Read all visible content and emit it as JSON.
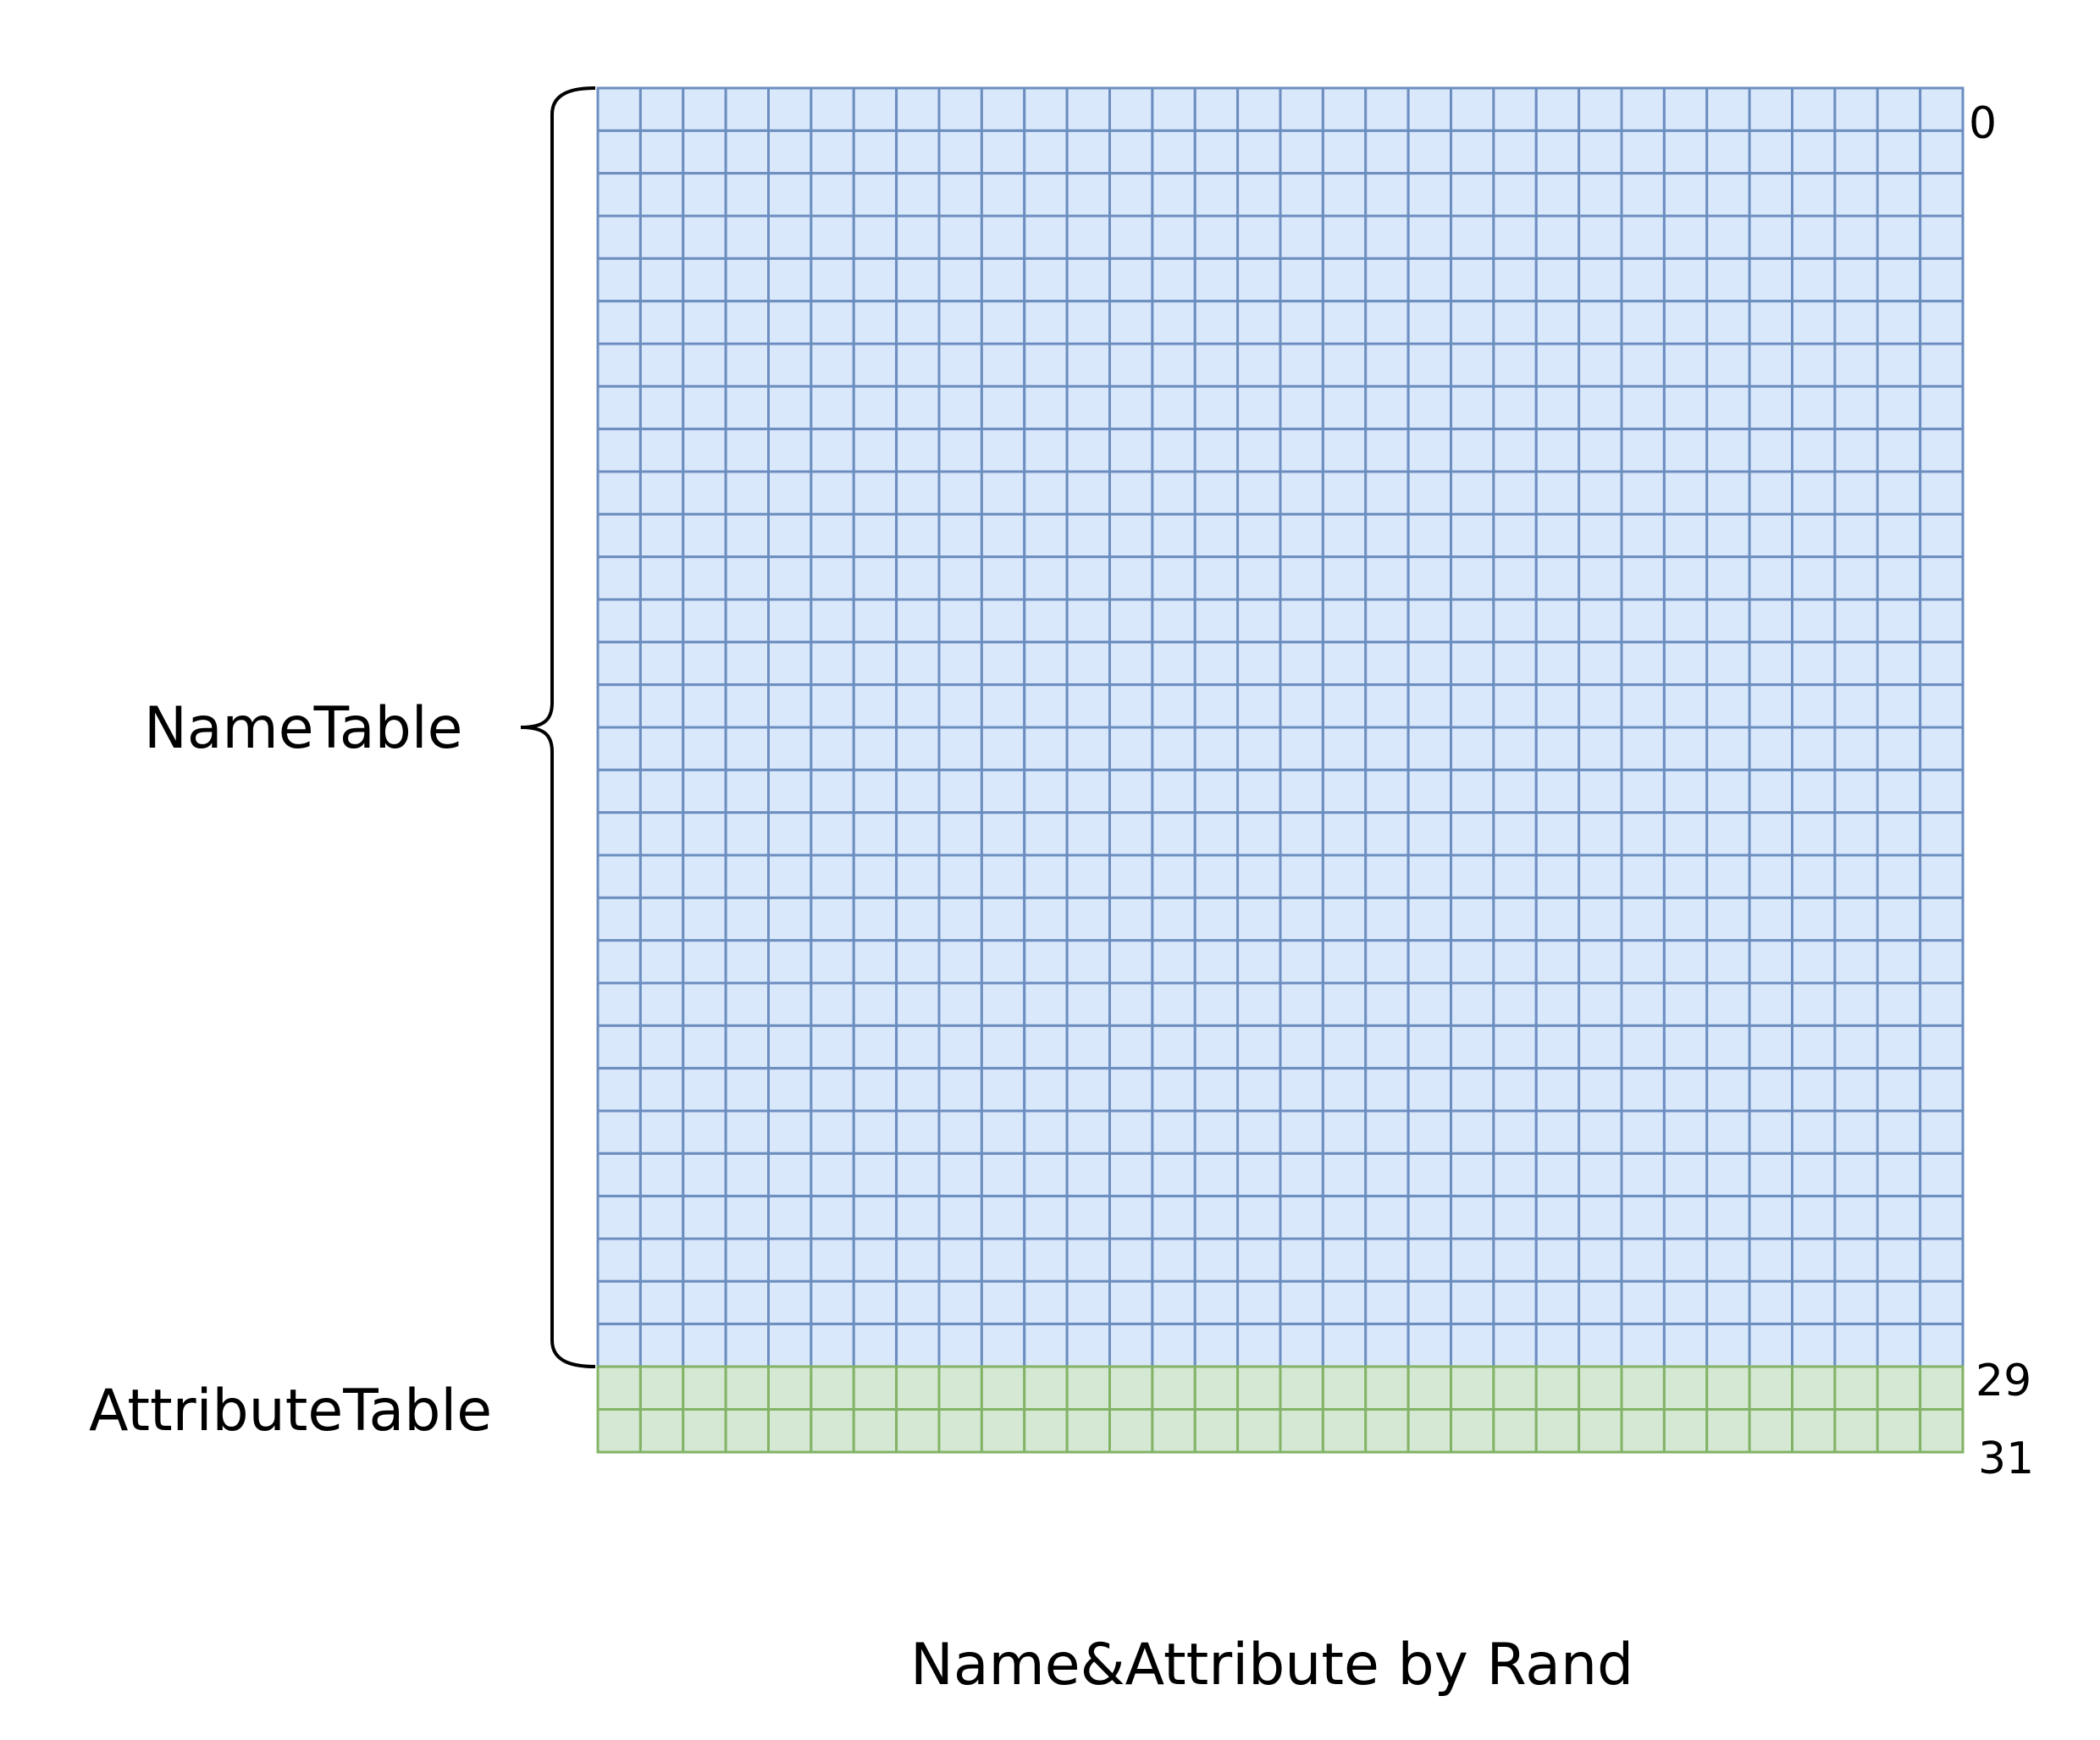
{
  "labels": {
    "name_table": "NameTable",
    "attribute_table": "AttributeTable",
    "row_start": "0",
    "row_attr_start": "29",
    "row_attr_end": "31",
    "caption": "Name&Attribute by Rand"
  },
  "grid": {
    "columns": 32,
    "name_table_rows": 30,
    "attribute_table_rows": 2
  },
  "colors": {
    "name_table_fill": "#dae8fc",
    "name_table_stroke": "#6c8ebf",
    "attribute_table_fill": "#d5e8d4",
    "attribute_table_stroke": "#82b366",
    "brace": "#000000"
  }
}
